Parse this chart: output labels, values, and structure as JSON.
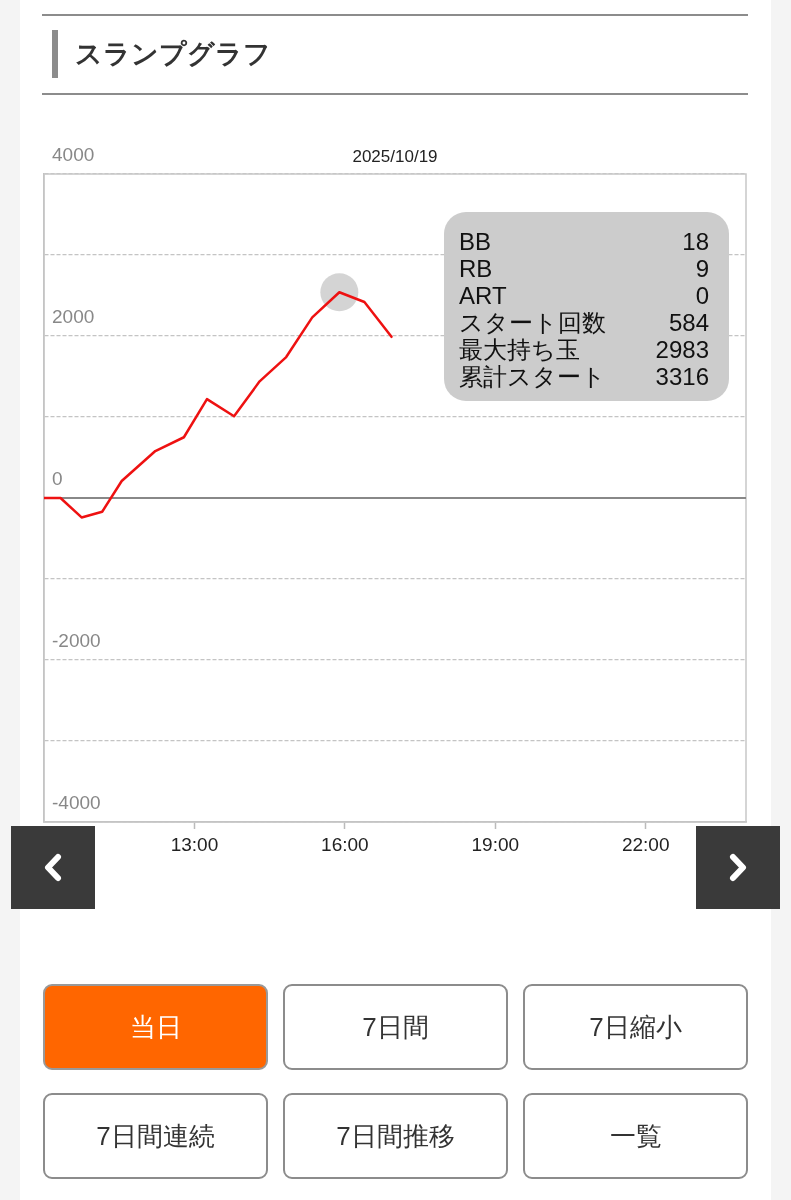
{
  "chart_data": [
    {
      "type": "line",
      "title": "スランプグラフ",
      "subtitle": "2025/10/19",
      "x": [
        10,
        10.33,
        10.75,
        11.16,
        11.55,
        12.22,
        12.79,
        13.25,
        13.79,
        14.3,
        14.83,
        15.35,
        15.89,
        16.39,
        16.93
      ],
      "series": [
        {
          "color": "#ee1111",
          "values": [
            0,
            0,
            -240,
            -170,
            210,
            580,
            750,
            1220,
            1010,
            1440,
            1740,
            2230,
            2540,
            2420,
            1990
          ]
        },
        {
          "type": "scatter",
          "color": "#d4d4d4",
          "marker": "circle",
          "x": [
            15.89
          ],
          "values": [
            2540
          ]
        }
      ],
      "xlim": [
        10,
        24
      ],
      "xticks": [
        {
          "value": 13,
          "label": "13:00"
        },
        {
          "value": 16,
          "label": "16:00"
        },
        {
          "value": 19,
          "label": "19:00"
        },
        {
          "value": 22,
          "label": "22:00"
        }
      ],
      "ylim": [
        -4000,
        4000
      ],
      "yticks": [
        -4000,
        {
          "value": -3000,
          "label": null
        },
        -2000,
        {
          "value": -1000,
          "label": null
        },
        0,
        {
          "value": 1000,
          "label": null
        },
        2000,
        {
          "value": 3000,
          "label": null
        },
        4000
      ],
      "grid": "y",
      "marker": "none",
      "line_style": "solid",
      "ref_lines": [
        {
          "axis": "y",
          "value": 0,
          "color": "#888888"
        }
      ],
      "annotations": [
        "BB",
        "18",
        "RB",
        "9",
        "ART",
        "0",
        "スタート回数",
        "584",
        "最大持ち玉",
        "2983",
        "累計スタート",
        "3316"
      ]
    },
    {
      "type": "other",
      "annotations": [
        "当日",
        "7日間",
        "7日縮小",
        "7日間連続",
        "7日間推移",
        "一覧"
      ]
    }
  ]
}
